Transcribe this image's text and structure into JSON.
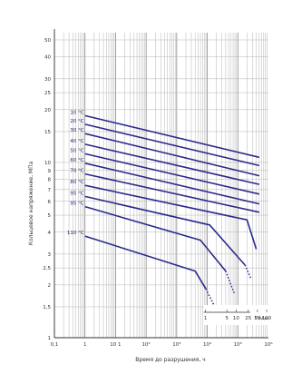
{
  "chart_data": {
    "type": "line",
    "title": "",
    "xlabel": "Время до разрушения, ч",
    "ylabel": "Кольцевое напряжение, МПа",
    "x_scale": "log",
    "y_scale": "log",
    "xlim": [
      0.1,
      1000000
    ],
    "ylim": [
      1,
      55
    ],
    "grid": true,
    "x_ticks": [
      0.1,
      1,
      10,
      100,
      1000,
      10000,
      100000,
      1000000
    ],
    "x_tick_labels": [
      "0,1",
      "1",
      "10 1",
      "10²",
      "10³",
      "10⁴",
      "10⁵",
      "10⁶"
    ],
    "y_ticks": [
      1,
      1.5,
      2,
      2.5,
      3,
      4,
      5,
      6,
      7,
      8,
      9,
      10,
      15,
      20,
      25,
      30,
      40,
      50
    ],
    "y_tick_labels": [
      "1",
      "1,5",
      "2",
      "2,5",
      "3",
      "4",
      "5",
      "6",
      "7",
      "8",
      "9",
      "10",
      "15",
      "20",
      "25",
      "30",
      "40",
      "50"
    ],
    "line_color": "#2a2a8c",
    "series": [
      {
        "name": "10 °C",
        "points": [
          [
            1,
            18.5
          ],
          [
            500000,
            10.7
          ]
        ]
      },
      {
        "name": "20 °C",
        "points": [
          [
            1,
            16.5
          ],
          [
            500000,
            9.6
          ]
        ]
      },
      {
        "name": "30 °C",
        "points": [
          [
            1,
            14.6
          ],
          [
            500000,
            8.4
          ]
        ]
      },
      {
        "name": "40 °C",
        "points": [
          [
            1,
            12.7
          ],
          [
            500000,
            7.5
          ]
        ]
      },
      {
        "name": "50 °C",
        "points": [
          [
            1,
            11.2
          ],
          [
            500000,
            6.6
          ]
        ]
      },
      {
        "name": "60 °C",
        "points": [
          [
            1,
            9.9
          ],
          [
            500000,
            5.8
          ]
        ]
      },
      {
        "name": "70 °C",
        "points": [
          [
            1,
            8.6
          ],
          [
            500000,
            5.2
          ]
        ]
      },
      {
        "name": "80 °C",
        "points": [
          [
            1,
            7.4
          ],
          [
            200000,
            4.7
          ],
          [
            400000,
            3.2
          ]
        ]
      },
      {
        "name": "95 °C",
        "points": [
          [
            1,
            6.4
          ],
          [
            12000,
            4.4
          ],
          [
            170000,
            2.6
          ]
        ],
        "dashed_tail": [
          [
            170000,
            2.6
          ],
          [
            260000,
            2.2
          ]
        ]
      },
      {
        "name": "95 °C",
        "points": [
          [
            1,
            5.6
          ],
          [
            6000,
            3.6
          ],
          [
            40000,
            2.4
          ]
        ],
        "dashed_tail": [
          [
            40000,
            2.4
          ],
          [
            75000,
            1.8
          ]
        ]
      },
      {
        "name": "110 °C",
        "points": [
          [
            1,
            3.8
          ],
          [
            4000,
            2.4
          ],
          [
            9000,
            1.9
          ]
        ],
        "dashed_tail": [
          [
            9000,
            1.9
          ],
          [
            16000,
            1.55
          ]
        ]
      }
    ],
    "years_scale": {
      "label": "Годы",
      "ticks": [
        {
          "label": "1",
          "hours": 8760
        },
        {
          "label": "5",
          "hours": 43800
        },
        {
          "label": "10",
          "hours": 87600
        },
        {
          "label": "25",
          "hours": 219000
        },
        {
          "label": "50",
          "hours": 438000
        },
        {
          "label": "100",
          "hours": 876000
        }
      ]
    }
  }
}
